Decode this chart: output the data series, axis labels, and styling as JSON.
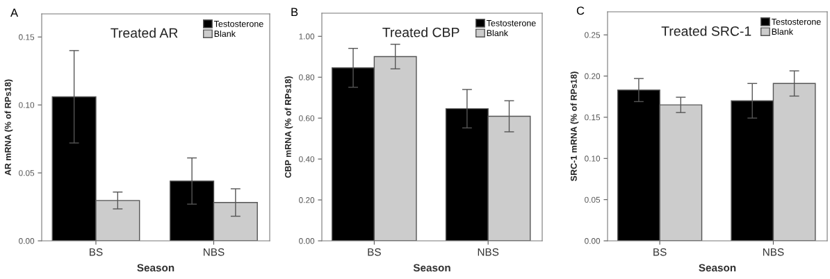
{
  "chart_data": [
    {
      "type": "bar",
      "title": "Treated AR",
      "xlabel": "Season",
      "ylabel": "AR mRNA (% of RPs18)",
      "annotations": [
        "A"
      ],
      "categories": [
        "BS",
        "NBS"
      ],
      "legend": "top right",
      "grid": false,
      "ylim": [
        0,
        0.167
      ],
      "yticks": [
        {
          "value": 0,
          "label": "0.00"
        },
        {
          "value": 0.05,
          "label": "0.05"
        },
        {
          "value": 0.1,
          "label": "0.10"
        },
        {
          "value": 0.15,
          "label": "0.15"
        }
      ],
      "series": [
        {
          "name": "Testosterone",
          "color": "#000000",
          "values": [
            0.106,
            0.044
          ],
          "errors": [
            0.034,
            0.017
          ]
        },
        {
          "name": "Blank",
          "color": "#cccccc",
          "values": [
            0.0297,
            0.0282
          ],
          "errors": [
            0.0062,
            0.0101
          ]
        }
      ]
    },
    {
      "type": "bar",
      "title": "Treated CBP",
      "xlabel": "Season",
      "ylabel": "CBP mRNA (% of RPs18)",
      "annotations": [
        "B"
      ],
      "categories": [
        "BS",
        "NBS"
      ],
      "legend": "top right",
      "grid": false,
      "ylim": [
        0,
        1.113
      ],
      "yticks": [
        {
          "value": 0,
          "label": "0.00"
        },
        {
          "value": 0.2,
          "label": "0.20"
        },
        {
          "value": 0.4,
          "label": "0.40"
        },
        {
          "value": 0.6,
          "label": "0.60"
        },
        {
          "value": 0.8,
          "label": "0.80"
        },
        {
          "value": 1.0,
          "label": "1.00"
        }
      ],
      "series": [
        {
          "name": "Testosterone",
          "color": "#000000",
          "values": [
            0.846,
            0.646
          ],
          "errors": [
            0.095,
            0.094
          ]
        },
        {
          "name": "Blank",
          "color": "#cccccc",
          "values": [
            0.901,
            0.609
          ],
          "errors": [
            0.06,
            0.076
          ]
        }
      ]
    },
    {
      "type": "bar",
      "title": "Treated SRC-1",
      "xlabel": "Season",
      "ylabel": "SRC-1 mRNA (% of RPs18)",
      "annotations": [
        "C"
      ],
      "categories": [
        "BS",
        "NBS"
      ],
      "legend": "top right",
      "grid": false,
      "ylim": [
        0,
        0.278
      ],
      "yticks": [
        {
          "value": 0,
          "label": "0.00"
        },
        {
          "value": 0.05,
          "label": "0.05"
        },
        {
          "value": 0.1,
          "label": "0.10"
        },
        {
          "value": 0.15,
          "label": "0.15"
        },
        {
          "value": 0.2,
          "label": "0.20"
        },
        {
          "value": 0.25,
          "label": "0.25"
        }
      ],
      "series": [
        {
          "name": "Testosterone",
          "color": "#000000",
          "values": [
            0.183,
            0.17
          ],
          "errors": [
            0.014,
            0.021
          ]
        },
        {
          "name": "Blank",
          "color": "#cccccc",
          "values": [
            0.165,
            0.191
          ],
          "errors": [
            0.0093,
            0.0153
          ]
        }
      ]
    }
  ]
}
